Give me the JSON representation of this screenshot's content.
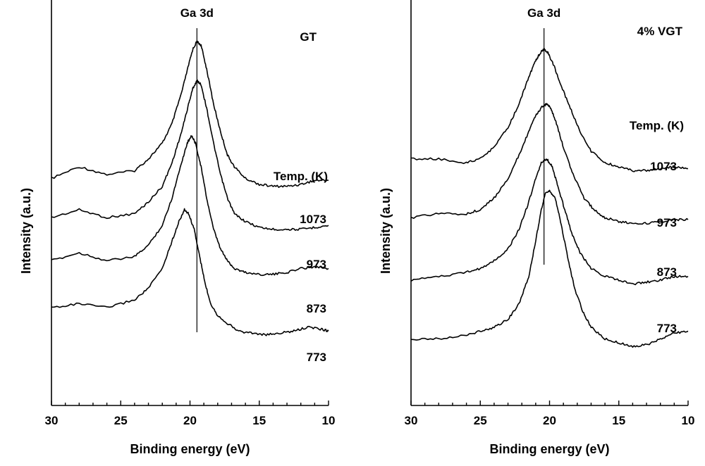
{
  "chart_data": [
    {
      "type": "line",
      "panel": "left",
      "xlabel": "Binding energy (eV)",
      "ylabel": "Intensity (a.u.)",
      "xlim": [
        30,
        10
      ],
      "x_reversed": true,
      "x_ticks": [
        30,
        25,
        20,
        15,
        10
      ],
      "y_ticks": [],
      "sample_label": "GT",
      "peak_label": "Ga 3d",
      "legend_title": "Temp. (K)",
      "reference_line_x": 19.5,
      "series": [
        {
          "name": "1073",
          "peak_x": 19.5,
          "peak_y": 0.93,
          "points": [
            [
              30,
              0.58
            ],
            [
              28,
              0.61
            ],
            [
              26,
              0.59
            ],
            [
              24,
              0.6
            ],
            [
              23,
              0.63
            ],
            [
              22,
              0.67
            ],
            [
              21.3,
              0.72
            ],
            [
              20.6,
              0.8
            ],
            [
              20.1,
              0.87
            ],
            [
              19.8,
              0.91
            ],
            [
              19.5,
              0.93
            ],
            [
              19.2,
              0.92
            ],
            [
              18.8,
              0.86
            ],
            [
              18.3,
              0.77
            ],
            [
              17.8,
              0.7
            ],
            [
              17.3,
              0.64
            ],
            [
              16.8,
              0.61
            ],
            [
              16,
              0.58
            ],
            [
              15,
              0.565
            ],
            [
              14,
              0.56
            ],
            [
              13,
              0.56
            ],
            [
              12,
              0.565
            ],
            [
              11,
              0.575
            ],
            [
              10,
              0.575
            ]
          ]
        },
        {
          "name": "973",
          "peak_x": 19.5,
          "peak_y": 0.83,
          "points": [
            [
              30,
              0.48
            ],
            [
              28,
              0.5
            ],
            [
              26,
              0.48
            ],
            [
              24,
              0.49
            ],
            [
              23,
              0.52
            ],
            [
              22,
              0.56
            ],
            [
              21.3,
              0.62
            ],
            [
              20.6,
              0.7
            ],
            [
              20.1,
              0.77
            ],
            [
              19.8,
              0.81
            ],
            [
              19.5,
              0.83
            ],
            [
              19.2,
              0.82
            ],
            [
              18.8,
              0.76
            ],
            [
              18.3,
              0.67
            ],
            [
              17.8,
              0.59
            ],
            [
              17.3,
              0.53
            ],
            [
              16.8,
              0.49
            ],
            [
              16,
              0.47
            ],
            [
              15,
              0.455
            ],
            [
              14,
              0.45
            ],
            [
              13,
              0.45
            ],
            [
              12,
              0.45
            ],
            [
              11,
              0.455
            ],
            [
              10,
              0.46
            ]
          ]
        },
        {
          "name": "873",
          "peak_x": 19.9,
          "peak_y": 0.69,
          "points": [
            [
              30,
              0.37
            ],
            [
              28,
              0.39
            ],
            [
              26,
              0.37
            ],
            [
              24,
              0.38
            ],
            [
              23,
              0.41
            ],
            [
              22,
              0.46
            ],
            [
              21.3,
              0.53
            ],
            [
              20.7,
              0.61
            ],
            [
              20.2,
              0.67
            ],
            [
              19.9,
              0.69
            ],
            [
              19.6,
              0.67
            ],
            [
              19.2,
              0.61
            ],
            [
              18.8,
              0.53
            ],
            [
              18.3,
              0.45
            ],
            [
              17.8,
              0.4
            ],
            [
              17.3,
              0.37
            ],
            [
              16.8,
              0.35
            ],
            [
              16,
              0.34
            ],
            [
              15,
              0.335
            ],
            [
              14,
              0.335
            ],
            [
              13,
              0.34
            ],
            [
              12,
              0.35
            ],
            [
              11,
              0.355
            ],
            [
              10,
              0.35
            ]
          ]
        },
        {
          "name": "773",
          "peak_x": 20.4,
          "peak_y": 0.5,
          "points": [
            [
              30,
              0.25
            ],
            [
              28,
              0.26
            ],
            [
              26,
              0.25
            ],
            [
              24,
              0.27
            ],
            [
              23,
              0.3
            ],
            [
              22,
              0.35
            ],
            [
              21.3,
              0.42
            ],
            [
              20.8,
              0.47
            ],
            [
              20.4,
              0.5
            ],
            [
              20.1,
              0.49
            ],
            [
              19.7,
              0.45
            ],
            [
              19.3,
              0.38
            ],
            [
              18.9,
              0.31
            ],
            [
              18.5,
              0.26
            ],
            [
              18,
              0.23
            ],
            [
              17.3,
              0.21
            ],
            [
              16.5,
              0.19
            ],
            [
              15.5,
              0.185
            ],
            [
              14.5,
              0.18
            ],
            [
              13.5,
              0.185
            ],
            [
              12.5,
              0.19
            ],
            [
              11.5,
              0.2
            ],
            [
              10.5,
              0.195
            ],
            [
              10,
              0.19
            ]
          ]
        }
      ]
    },
    {
      "type": "line",
      "panel": "right",
      "xlabel": "Binding energy (eV)",
      "ylabel": "Intensity (a.u.)",
      "xlim": [
        30,
        10
      ],
      "x_reversed": true,
      "x_ticks": [
        30,
        25,
        20,
        15,
        10
      ],
      "y_ticks": [],
      "sample_label": "4% VGT",
      "peak_label": "Ga 3d",
      "legend_title": "Temp. (K)",
      "reference_line_x": 20.4,
      "series": [
        {
          "name": "1073",
          "peak_x": 20.4,
          "peak_y": 0.91,
          "points": [
            [
              30,
              0.63
            ],
            [
              28,
              0.63
            ],
            [
              26,
              0.62
            ],
            [
              25,
              0.63
            ],
            [
              24,
              0.66
            ],
            [
              23,
              0.71
            ],
            [
              22.2,
              0.77
            ],
            [
              21.5,
              0.84
            ],
            [
              21,
              0.88
            ],
            [
              20.7,
              0.9
            ],
            [
              20.4,
              0.91
            ],
            [
              20.1,
              0.9
            ],
            [
              19.7,
              0.87
            ],
            [
              19.2,
              0.82
            ],
            [
              18.5,
              0.76
            ],
            [
              17.8,
              0.7
            ],
            [
              17,
              0.65
            ],
            [
              16,
              0.62
            ],
            [
              15,
              0.61
            ],
            [
              14,
              0.6
            ],
            [
              13,
              0.6
            ],
            [
              12,
              0.605
            ],
            [
              11,
              0.61
            ],
            [
              10,
              0.605
            ]
          ]
        },
        {
          "name": "973",
          "peak_x": 20.2,
          "peak_y": 0.77,
          "points": [
            [
              30,
              0.48
            ],
            [
              28,
              0.49
            ],
            [
              26,
              0.49
            ],
            [
              25,
              0.5
            ],
            [
              24,
              0.53
            ],
            [
              23,
              0.58
            ],
            [
              22.2,
              0.64
            ],
            [
              21.5,
              0.7
            ],
            [
              21,
              0.74
            ],
            [
              20.5,
              0.765
            ],
            [
              20.2,
              0.77
            ],
            [
              19.9,
              0.76
            ],
            [
              19.5,
              0.72
            ],
            [
              19,
              0.66
            ],
            [
              18.3,
              0.59
            ],
            [
              17.5,
              0.53
            ],
            [
              16.8,
              0.5
            ],
            [
              16,
              0.48
            ],
            [
              15,
              0.47
            ],
            [
              14,
              0.465
            ],
            [
              13,
              0.465
            ],
            [
              12,
              0.47
            ],
            [
              11,
              0.475
            ],
            [
              10,
              0.475
            ]
          ]
        },
        {
          "name": "873",
          "peak_x": 20.2,
          "peak_y": 0.63,
          "points": [
            [
              30,
              0.32
            ],
            [
              28,
              0.33
            ],
            [
              26,
              0.34
            ],
            [
              25,
              0.35
            ],
            [
              24,
              0.37
            ],
            [
              23,
              0.4
            ],
            [
              22.2,
              0.45
            ],
            [
              21.5,
              0.52
            ],
            [
              21,
              0.58
            ],
            [
              20.6,
              0.62
            ],
            [
              20.2,
              0.63
            ],
            [
              19.8,
              0.61
            ],
            [
              19.4,
              0.56
            ],
            [
              18.9,
              0.5
            ],
            [
              18.4,
              0.44
            ],
            [
              17.8,
              0.39
            ],
            [
              17,
              0.35
            ],
            [
              16,
              0.33
            ],
            [
              15,
              0.32
            ],
            [
              14,
              0.31
            ],
            [
              13,
              0.315
            ],
            [
              12,
              0.32
            ],
            [
              11,
              0.33
            ],
            [
              10,
              0.33
            ]
          ]
        },
        {
          "name": "773",
          "peak_x": 20.0,
          "peak_y": 0.55,
          "points": [
            [
              30,
              0.17
            ],
            [
              28,
              0.17
            ],
            [
              26,
              0.18
            ],
            [
              25,
              0.19
            ],
            [
              24,
              0.2
            ],
            [
              23,
              0.22
            ],
            [
              22.2,
              0.26
            ],
            [
              21.5,
              0.33
            ],
            [
              21,
              0.42
            ],
            [
              20.6,
              0.5
            ],
            [
              20.3,
              0.54
            ],
            [
              20,
              0.55
            ],
            [
              19.6,
              0.53
            ],
            [
              19.2,
              0.47
            ],
            [
              18.7,
              0.38
            ],
            [
              18.2,
              0.3
            ],
            [
              17.6,
              0.24
            ],
            [
              17,
              0.2
            ],
            [
              16,
              0.17
            ],
            [
              15,
              0.16
            ],
            [
              14,
              0.15
            ],
            [
              13,
              0.155
            ],
            [
              12,
              0.17
            ],
            [
              11,
              0.185
            ],
            [
              10,
              0.19
            ]
          ]
        }
      ]
    }
  ]
}
